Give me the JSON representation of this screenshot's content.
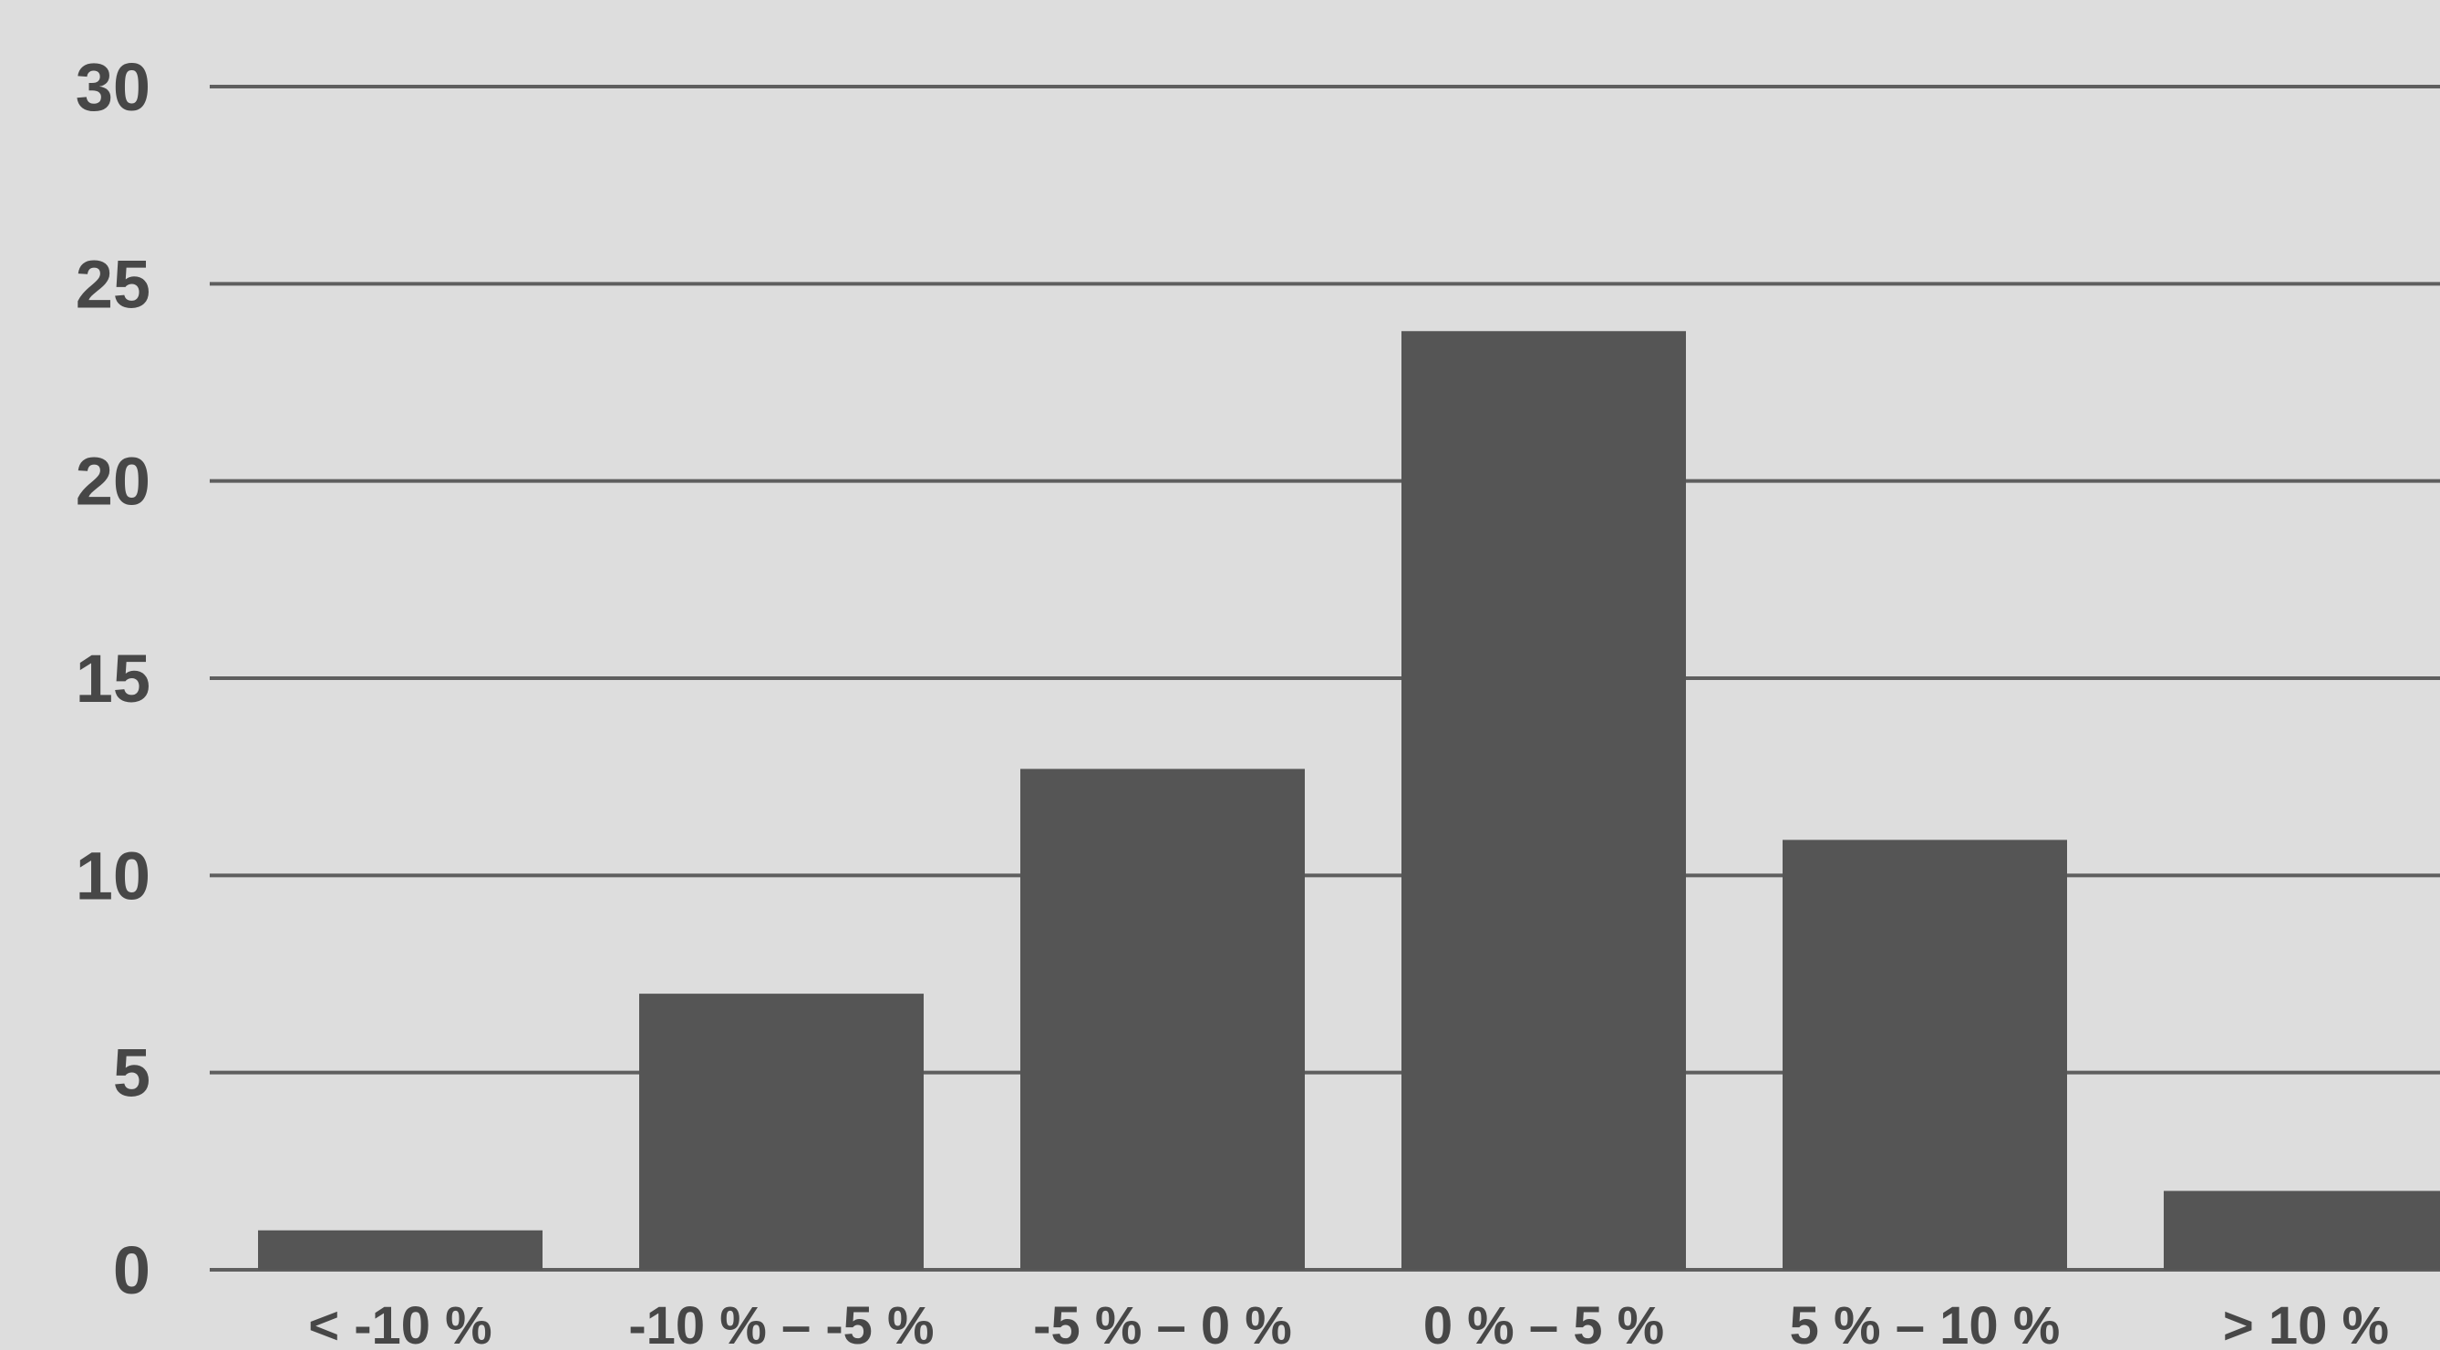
{
  "chart_data": {
    "type": "bar",
    "categories": [
      "< -10 %",
      "-10 % – -5 %",
      "-5 % – 0 %",
      "0 % – 5 %",
      "5 % – 10 %",
      "> 10 %"
    ],
    "values": [
      1,
      7,
      12.7,
      23.8,
      10.9,
      2
    ],
    "title": "",
    "xlabel": "",
    "ylabel": "",
    "ylim": [
      0,
      30
    ],
    "yticks": [
      0,
      5,
      10,
      15,
      20,
      25,
      30
    ],
    "grid": true,
    "legend": "none",
    "colors": {
      "background": "#dddddd",
      "bar": "#555555",
      "gridline": "#5e5e5e",
      "text": "#474747"
    }
  }
}
